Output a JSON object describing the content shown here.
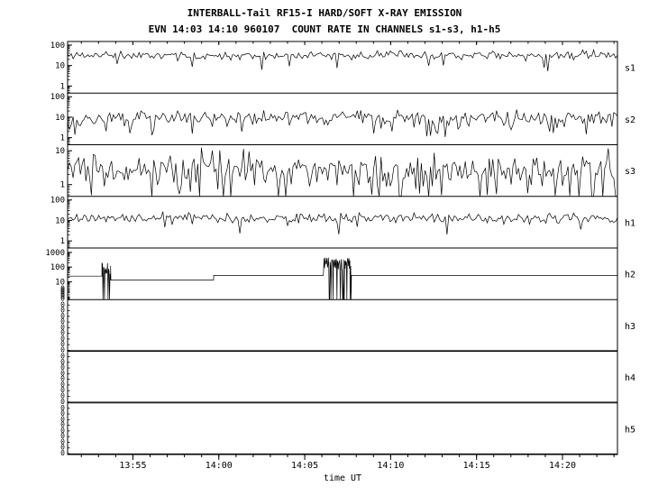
{
  "page": {
    "background": "#ffffff",
    "foreground": "#000000"
  },
  "title": "INTERBALL-Tail RF15-I HARD/SOFT X-RAY EMISSION",
  "subtitle": "EVN 14:03 14:10 960107  COUNT RATE IN CHANNELS s1-s3, h1-h5",
  "chart_data": {
    "type": "line",
    "title": "INTERBALL-Tail RF15-I HARD/SOFT X-RAY EMISSION",
    "subtitle": "EVN 14:03 14:10 960107  COUNT RATE IN CHANNELS s1-s3, h1-h5",
    "xlabel": "time UT",
    "grid": false,
    "line_color": "#000000",
    "x_axis": {
      "start_min": 831.2,
      "end_min": 863.2,
      "minor_step_min": 1,
      "major_ticks": [
        {
          "min": 835,
          "label": "13:55"
        },
        {
          "min": 840,
          "label": "14:00"
        },
        {
          "min": 845,
          "label": "14:05"
        },
        {
          "min": 850,
          "label": "14:10"
        },
        {
          "min": 855,
          "label": "14:15"
        },
        {
          "min": 860,
          "label": "14:20"
        }
      ]
    },
    "panels": [
      {
        "id": "s1",
        "label": "s1",
        "scale": "log",
        "vmin": 0.45,
        "vmax": 150,
        "yticks": [
          {
            "v": 100,
            "label": "100"
          },
          {
            "v": 10,
            "label": "10"
          },
          {
            "v": 1,
            "label": "1"
          }
        ],
        "seed": 11,
        "signal": {
          "kind": "lognoise",
          "baseline": 32,
          "sigma": 0.1,
          "downspike_prob": 0.02,
          "downspike_factor": 0.4
        }
      },
      {
        "id": "s2",
        "label": "s2",
        "scale": "log",
        "vmin": 0.45,
        "vmax": 150,
        "yticks": [
          {
            "v": 100,
            "label": "100"
          },
          {
            "v": 10,
            "label": "10"
          },
          {
            "v": 1,
            "label": "1"
          }
        ],
        "seed": 22,
        "signal": {
          "kind": "lognoise",
          "baseline": 9,
          "sigma": 0.18,
          "downspike_prob": 0.05,
          "downspike_factor": 0.35
        }
      },
      {
        "id": "s3",
        "label": "s3",
        "scale": "log",
        "vmin": 0.45,
        "vmax": 15,
        "yticks": [
          {
            "v": 10,
            "label": "10"
          },
          {
            "v": 1,
            "label": "1"
          }
        ],
        "seed": 33,
        "signal": {
          "kind": "lognoise",
          "baseline": 2.8,
          "sigma": 0.24,
          "downspike_prob": 0.12,
          "downspike_factor": 0.22
        }
      },
      {
        "id": "h1",
        "label": "h1",
        "scale": "log",
        "vmin": 0.45,
        "vmax": 150,
        "yticks": [
          {
            "v": 100,
            "label": "100"
          },
          {
            "v": 10,
            "label": "10"
          },
          {
            "v": 1,
            "label": "1"
          }
        ],
        "seed": 44,
        "signal": {
          "kind": "lognoise",
          "baseline": 13,
          "sigma": 0.13,
          "downspike_prob": 0.03,
          "downspike_factor": 0.4
        }
      },
      {
        "id": "h2",
        "label": "h2",
        "scale": "log",
        "vmin": 0.6,
        "vmax": 2000,
        "yticks": [
          {
            "v": 1000,
            "label": "1000"
          },
          {
            "v": 100,
            "label": "100"
          },
          {
            "v": 10,
            "label": "10"
          }
        ],
        "zero_labels": 6,
        "seed": 55,
        "signal": {
          "kind": "step",
          "segments": [
            {
              "from": 831.2,
              "to": 833.2,
              "level": 24
            },
            {
              "from": 833.7,
              "to": 839.7,
              "level": 13
            },
            {
              "from": 839.7,
              "to": 863.2,
              "level": 27
            }
          ],
          "bursts": [
            {
              "from": 833.2,
              "to": 833.7,
              "peak": 90,
              "drop_frac": 0.12,
              "base_before": 24,
              "base_after": 13,
              "step_min": 0.03
            },
            {
              "from": 846.1,
              "to": 847.7,
              "peak": 160,
              "drop_frac": 0.18,
              "base_before": 27,
              "base_after": 27,
              "step_min": 0.025
            }
          ]
        }
      },
      {
        "id": "h3",
        "label": "h3",
        "scale": "zero",
        "zero_labels": 9,
        "seed": 66,
        "signal": {
          "kind": "flat",
          "level": 0
        }
      },
      {
        "id": "h4",
        "label": "h4",
        "scale": "zero",
        "zero_labels": 9,
        "seed": 77,
        "signal": {
          "kind": "flat",
          "level": 0
        }
      },
      {
        "id": "h5",
        "label": "h5",
        "scale": "zero",
        "zero_labels": 9,
        "seed": 88,
        "signal": {
          "kind": "flat",
          "level": 0
        }
      }
    ]
  }
}
